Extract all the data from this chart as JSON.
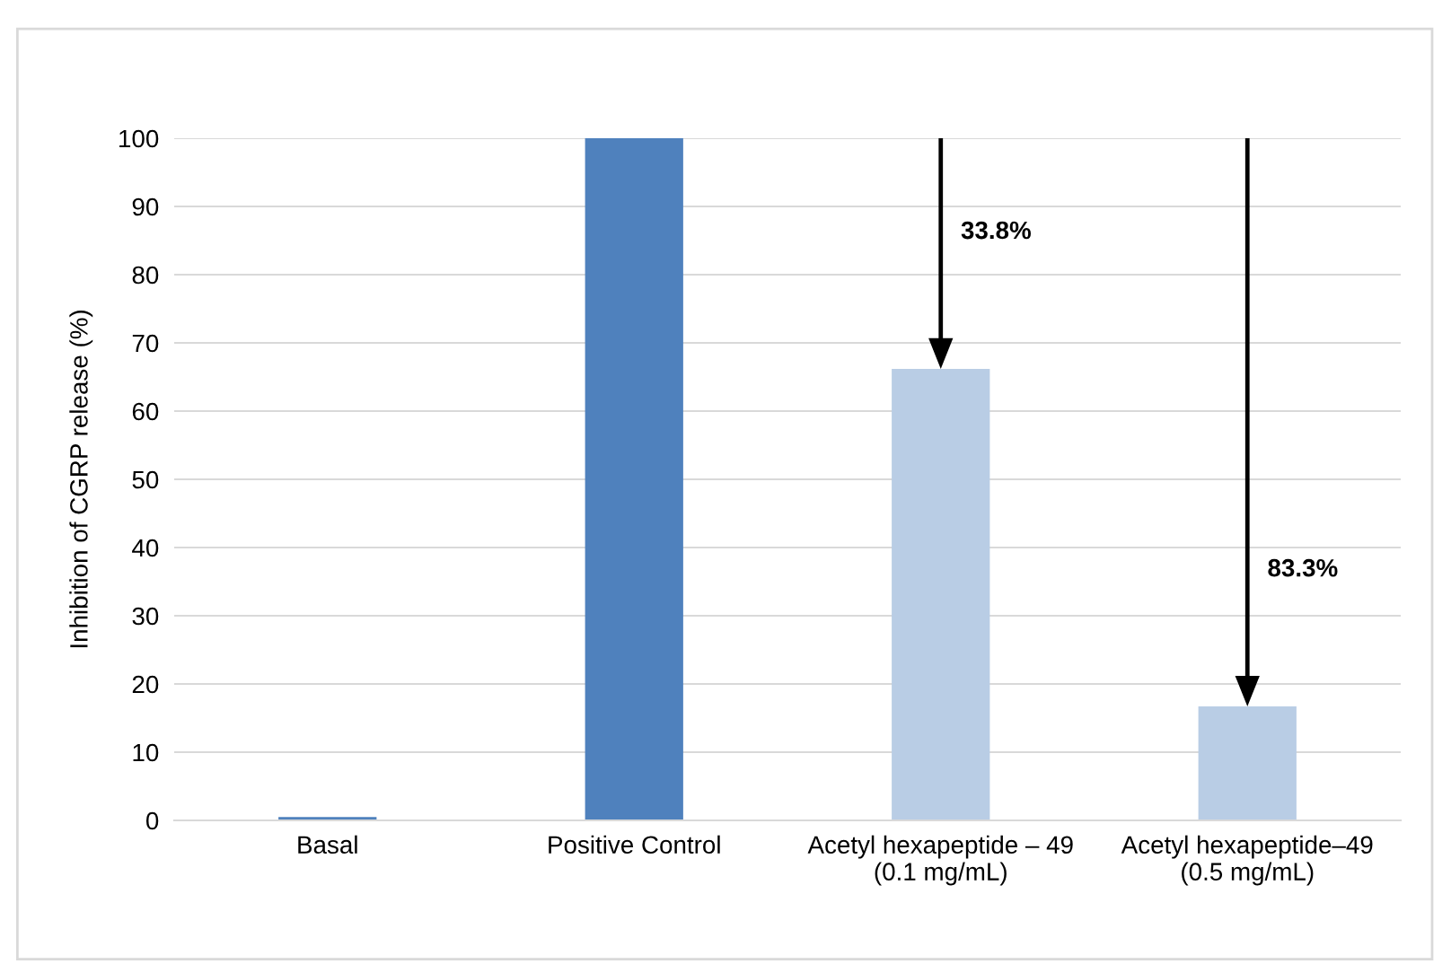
{
  "chart_data": {
    "type": "bar",
    "ylabel": "Inhibition of CGRP release (%)",
    "categories": [
      "Basal",
      "Positive Control",
      "Acetyl hexapeptide – 49\n(0.1 mg/mL)",
      "Acetyl hexapeptide–49\n(0.5 mg/mL)"
    ],
    "values": [
      0.5,
      100,
      66.2,
      16.7
    ],
    "colors": [
      "#4f81bd",
      "#4f81bd",
      "#b9cde5",
      "#b9cde5"
    ],
    "ylim": [
      0,
      100
    ],
    "yticks": [
      0,
      10,
      20,
      30,
      40,
      50,
      60,
      70,
      80,
      90,
      100
    ],
    "grid": "y",
    "legend": false,
    "annotations": [
      "33.8%",
      "83.3%"
    ]
  }
}
